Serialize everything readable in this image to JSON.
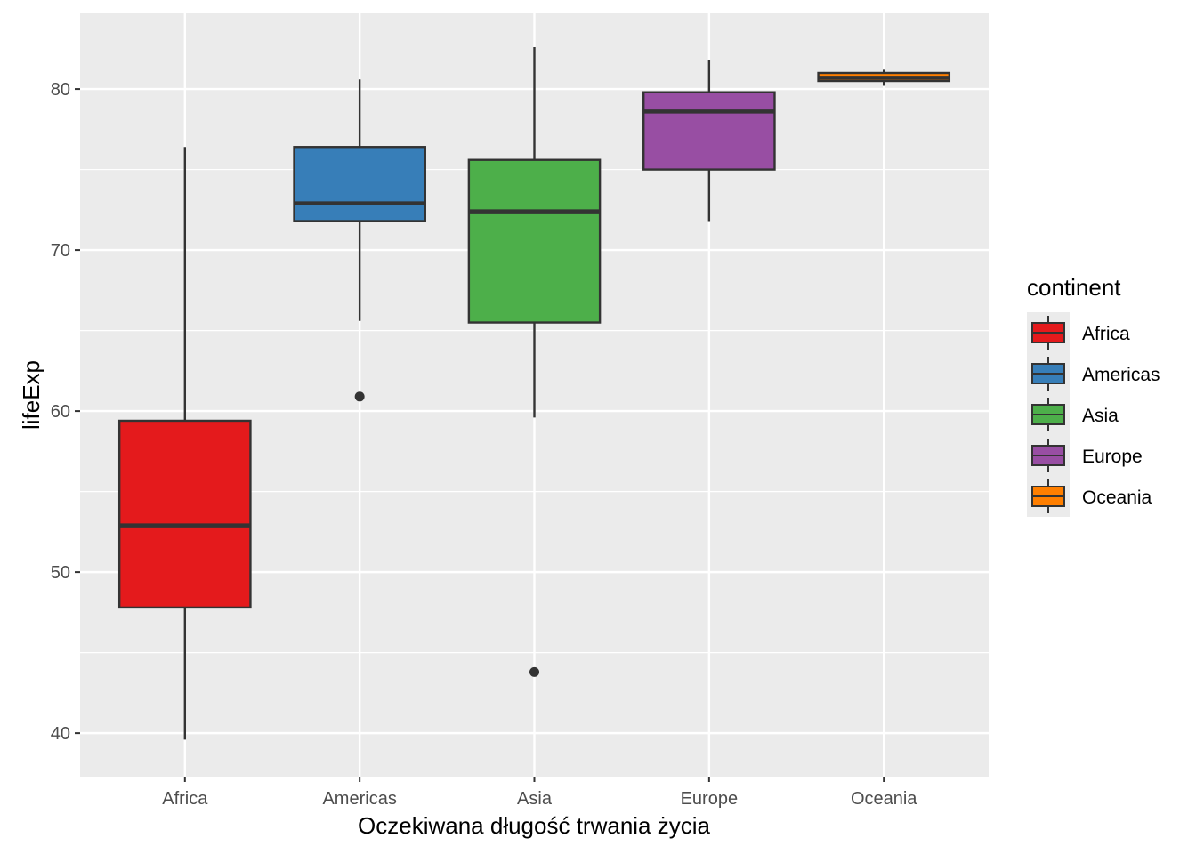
{
  "chart_data": {
    "type": "boxplot",
    "title": "",
    "xlabel": "Oczekiwana długość trwania życia",
    "ylabel": "lifeExp",
    "ylim": [
      37.3,
      84.7
    ],
    "yticks": [
      40,
      50,
      60,
      70,
      80
    ],
    "grid": true,
    "legend": {
      "title": "continent",
      "position": "right"
    },
    "categories": [
      "Africa",
      "Americas",
      "Asia",
      "Europe",
      "Oceania"
    ],
    "series": [
      {
        "name": "Africa",
        "color": "#E41A1C",
        "whisker_low": 39.6,
        "q1": 47.8,
        "median": 52.9,
        "q3": 59.4,
        "whisker_high": 76.4,
        "outliers": []
      },
      {
        "name": "Americas",
        "color": "#377EB8",
        "whisker_low": 65.6,
        "q1": 71.8,
        "median": 72.9,
        "q3": 76.4,
        "whisker_high": 80.6,
        "outliers": [
          60.9
        ]
      },
      {
        "name": "Asia",
        "color": "#4DAF4A",
        "whisker_low": 59.6,
        "q1": 65.5,
        "median": 72.4,
        "q3": 75.6,
        "whisker_high": 82.6,
        "outliers": [
          43.8
        ]
      },
      {
        "name": "Europe",
        "color": "#984EA3",
        "whisker_low": 71.8,
        "q1": 75.0,
        "median": 78.6,
        "q3": 79.8,
        "whisker_high": 81.8,
        "outliers": []
      },
      {
        "name": "Oceania",
        "color": "#FF7F00",
        "whisker_low": 80.2,
        "q1": 80.5,
        "median": 80.7,
        "q3": 81.0,
        "whisker_high": 81.2,
        "outliers": []
      }
    ]
  }
}
